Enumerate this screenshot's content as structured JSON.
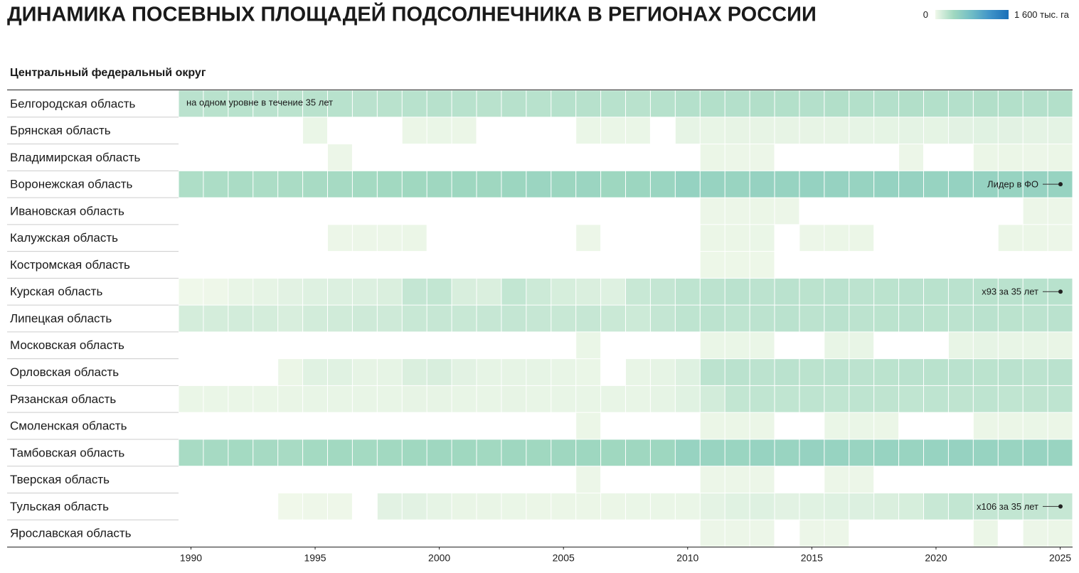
{
  "chart_data": {
    "type": "heatmap",
    "title": "ДИНАМИКА ПОСЕВНЫХ ПЛОЩАДЕЙ ПОДСОЛНЕЧНИКА В РЕГИОНАХ РОССИИ",
    "group_label": "Центральный федеральный округ",
    "clim": [
      0,
      1600
    ],
    "legend_ticks": [
      0,
      {
        "value": 1600,
        "label": "1 600 тыс. га"
      }
    ],
    "colors": [
      "#f0f8ea",
      "#a0d8c0",
      "#6fbcc6",
      "#3f93c8",
      "#1a6fb8"
    ],
    "x": [
      1990,
      1991,
      1992,
      1993,
      1994,
      1995,
      1996,
      1997,
      1998,
      1999,
      2000,
      2001,
      2002,
      2003,
      2004,
      2005,
      2006,
      2007,
      2008,
      2009,
      2010,
      2011,
      2012,
      2013,
      2014,
      2015,
      2016,
      2017,
      2018,
      2019,
      2020,
      2021,
      2022,
      2023,
      2024,
      2025
    ],
    "xticks": [
      1990,
      1995,
      2000,
      2005,
      2010,
      2015,
      2020,
      2025
    ],
    "categories": [
      "Белгородская область",
      "Брянская область",
      "Владимирская область",
      "Воронежская область",
      "Ивановская область",
      "Калужская область",
      "Костромская область",
      "Курская область",
      "Липецкая область",
      "Московская область",
      "Орловская область",
      "Рязанская область",
      "Смоленская область",
      "Тамбовская область",
      "Тверская область",
      "Тульская область",
      "Ярославская область"
    ],
    "values": [
      [
        270,
        275,
        280,
        270,
        265,
        275,
        280,
        270,
        275,
        280,
        285,
        280,
        275,
        285,
        280,
        290,
        285,
        280,
        275,
        290,
        300,
        305,
        300,
        310,
        305,
        300,
        310,
        305,
        300,
        310,
        305,
        300,
        310,
        305,
        300,
        305
      ],
      [
        null,
        null,
        null,
        null,
        null,
        30,
        null,
        null,
        null,
        25,
        30,
        25,
        null,
        null,
        null,
        null,
        30,
        30,
        30,
        null,
        50,
        40,
        45,
        45,
        45,
        45,
        45,
        50,
        55,
        60,
        55,
        70,
        80,
        70,
        60,
        60
      ],
      [
        null,
        null,
        null,
        null,
        null,
        null,
        20,
        null,
        null,
        null,
        null,
        null,
        null,
        null,
        null,
        null,
        null,
        null,
        null,
        null,
        null,
        25,
        20,
        20,
        null,
        null,
        null,
        null,
        null,
        20,
        null,
        null,
        25,
        25,
        20,
        25
      ],
      [
        330,
        340,
        350,
        340,
        350,
        360,
        370,
        380,
        390,
        400,
        410,
        420,
        410,
        430,
        440,
        430,
        440,
        420,
        430,
        450,
        490,
        470,
        460,
        480,
        470,
        490,
        480,
        470,
        490,
        480,
        470,
        490,
        480,
        470,
        480,
        470
      ],
      [
        null,
        null,
        null,
        null,
        null,
        null,
        null,
        null,
        null,
        null,
        null,
        null,
        null,
        null,
        null,
        null,
        null,
        null,
        null,
        null,
        null,
        20,
        20,
        25,
        20,
        null,
        null,
        null,
        null,
        null,
        null,
        null,
        null,
        null,
        20,
        20
      ],
      [
        null,
        null,
        null,
        null,
        null,
        null,
        20,
        20,
        20,
        25,
        null,
        null,
        null,
        null,
        null,
        null,
        20,
        null,
        null,
        null,
        null,
        25,
        25,
        30,
        null,
        20,
        25,
        25,
        null,
        null,
        null,
        null,
        null,
        25,
        25,
        20
      ],
      [
        null,
        null,
        null,
        null,
        null,
        null,
        null,
        null,
        null,
        null,
        null,
        null,
        null,
        null,
        null,
        null,
        null,
        null,
        null,
        null,
        null,
        15,
        15,
        15,
        null,
        null,
        null,
        null,
        null,
        null,
        null,
        null,
        null,
        null,
        null,
        null
      ],
      [
        3,
        10,
        40,
        50,
        70,
        90,
        100,
        100,
        110,
        220,
        230,
        120,
        110,
        230,
        180,
        130,
        110,
        90,
        200,
        220,
        250,
        260,
        270,
        260,
        270,
        265,
        270,
        260,
        265,
        270,
        275,
        270,
        275,
        270,
        280,
        279
      ],
      [
        140,
        140,
        150,
        140,
        120,
        150,
        160,
        170,
        170,
        200,
        210,
        200,
        210,
        220,
        210,
        200,
        210,
        190,
        180,
        220,
        250,
        260,
        250,
        260,
        270,
        260,
        270,
        260,
        265,
        270,
        265,
        260,
        270,
        265,
        260,
        270
      ],
      [
        null,
        null,
        null,
        null,
        null,
        null,
        null,
        null,
        null,
        null,
        null,
        null,
        null,
        null,
        null,
        null,
        30,
        null,
        null,
        null,
        null,
        30,
        30,
        30,
        null,
        null,
        40,
        40,
        null,
        null,
        null,
        40,
        50,
        40,
        40,
        35
      ],
      [
        null,
        null,
        null,
        null,
        25,
        80,
        80,
        50,
        50,
        110,
        120,
        70,
        50,
        50,
        50,
        40,
        30,
        null,
        40,
        50,
        90,
        260,
        270,
        260,
        270,
        265,
        270,
        260,
        265,
        270,
        275,
        270,
        265,
        270,
        260,
        270
      ],
      [
        30,
        30,
        30,
        30,
        35,
        40,
        40,
        40,
        40,
        45,
        45,
        40,
        40,
        45,
        40,
        40,
        40,
        40,
        40,
        50,
        80,
        150,
        230,
        240,
        240,
        250,
        240,
        250,
        245,
        240,
        250,
        245,
        250,
        240,
        245,
        250
      ],
      [
        null,
        null,
        null,
        null,
        null,
        null,
        null,
        null,
        null,
        null,
        null,
        null,
        null,
        null,
        null,
        null,
        25,
        null,
        null,
        null,
        null,
        25,
        25,
        25,
        null,
        null,
        30,
        30,
        25,
        null,
        null,
        null,
        25,
        25,
        30,
        25
      ],
      [
        360,
        370,
        380,
        370,
        360,
        380,
        390,
        380,
        390,
        400,
        410,
        400,
        390,
        410,
        400,
        410,
        420,
        400,
        410,
        420,
        470,
        460,
        450,
        470,
        460,
        480,
        470,
        460,
        470,
        460,
        470,
        480,
        470,
        460,
        470,
        460
      ],
      [
        null,
        null,
        null,
        null,
        null,
        null,
        null,
        null,
        null,
        null,
        null,
        null,
        null,
        null,
        null,
        null,
        20,
        null,
        null,
        null,
        null,
        20,
        20,
        20,
        null,
        null,
        20,
        20,
        null,
        null,
        null,
        null,
        null,
        null,
        null,
        null
      ],
      [
        null,
        null,
        null,
        null,
        2,
        10,
        8,
        null,
        70,
        70,
        50,
        35,
        35,
        30,
        25,
        25,
        25,
        25,
        30,
        30,
        30,
        60,
        80,
        90,
        70,
        80,
        90,
        100,
        110,
        130,
        200,
        230,
        220,
        230,
        220,
        212
      ],
      [
        null,
        null,
        null,
        null,
        null,
        null,
        null,
        null,
        null,
        null,
        null,
        null,
        null,
        null,
        null,
        null,
        null,
        null,
        null,
        null,
        null,
        20,
        20,
        20,
        null,
        20,
        20,
        null,
        null,
        null,
        null,
        null,
        25,
        null,
        20,
        25
      ]
    ],
    "annotations": [
      {
        "text": "на одном уровне в течение 35 лет",
        "category": "Белгородская область",
        "position": "left"
      },
      {
        "text": "Лидер в ФО",
        "category": "Воронежская область",
        "position": "right"
      },
      {
        "text": "x93 за 35 лет",
        "category": "Курская область",
        "position": "right"
      },
      {
        "text": "x106 за 35 лет",
        "category": "Тульская область",
        "position": "right"
      }
    ]
  }
}
